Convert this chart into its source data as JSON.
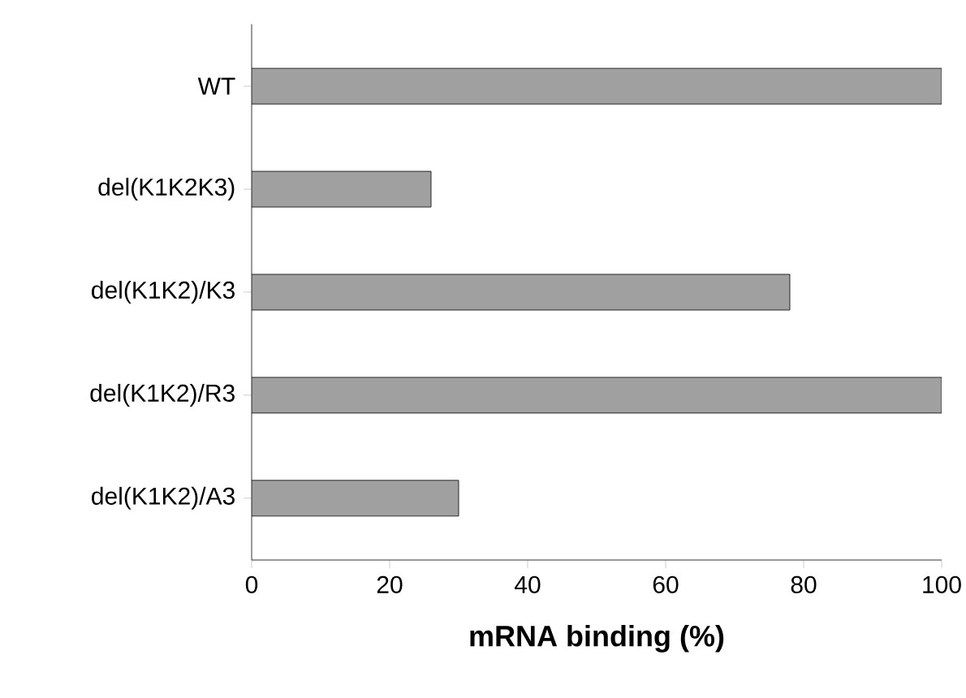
{
  "chart_data": {
    "type": "bar",
    "orientation": "horizontal",
    "xlabel": "mRNA binding (%)",
    "categories": [
      "WT",
      "del(K1K2K3)",
      "del(K1K2)/K3",
      "del(K1K2)/R3",
      "del(K1K2)/A3"
    ],
    "values": [
      100,
      26,
      78,
      100,
      30
    ],
    "color": "#a0a0a0",
    "xlim": [
      0,
      100
    ],
    "xticks": [
      0,
      20,
      40,
      60,
      80,
      100
    ],
    "grid": false
  }
}
